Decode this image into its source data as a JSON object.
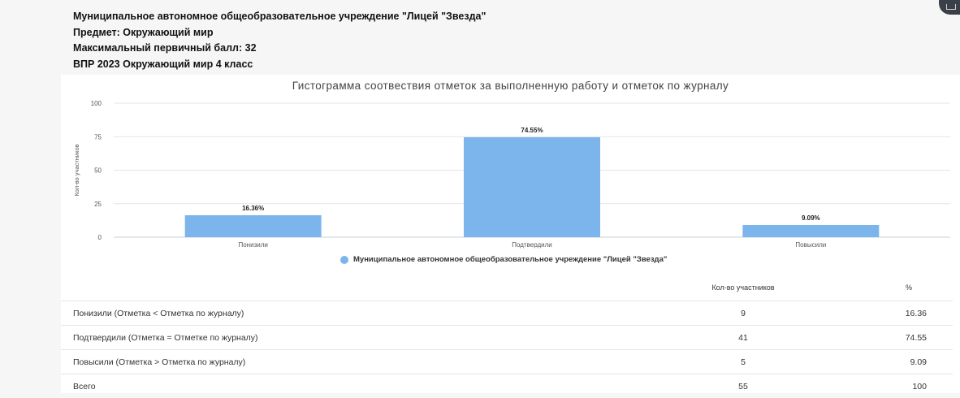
{
  "header": {
    "lines": [
      "Муниципальное автономное общеобразовательное учреждение \"Лицей \"Звезда\"",
      "Предмет: Окружающий мир",
      "Максимальный первичный балл: 32",
      "ВПР 2023 Окружающий мир 4 класс"
    ]
  },
  "chart_data": {
    "type": "bar",
    "title": "Гистограмма соотвествия отметок за выполненную работу и отметок по журналу",
    "xlabel": "",
    "ylabel": "Кол-во участников",
    "ylim": [
      0,
      100
    ],
    "yticks": [
      0,
      25,
      50,
      75,
      100
    ],
    "grid": true,
    "legend_position": "bottom",
    "categories": [
      "Понизили",
      "Подтвердили",
      "Повысили"
    ],
    "series": [
      {
        "name": "Муниципальное автономное общеобразовательное учреждение \"Лицей \"Звезда\"",
        "values": [
          16.36,
          74.55,
          9.09
        ],
        "labels": [
          "16.36%",
          "74.55%",
          "9.09%"
        ],
        "color": "#7cb5ec"
      }
    ]
  },
  "table": {
    "headers": [
      "",
      "Кол-во участников",
      "%"
    ],
    "rows": [
      {
        "label": "Понизили (Отметка < Отметка по журналу)",
        "count": "9",
        "percent": "16.36"
      },
      {
        "label": "Подтвердили (Отметка = Отметке по журналу)",
        "count": "41",
        "percent": "74.55"
      },
      {
        "label": "Повысили (Отметка > Отметка по журналу)",
        "count": "5",
        "percent": "9.09"
      },
      {
        "label": "Всего",
        "count": "55",
        "percent": "100"
      }
    ]
  }
}
